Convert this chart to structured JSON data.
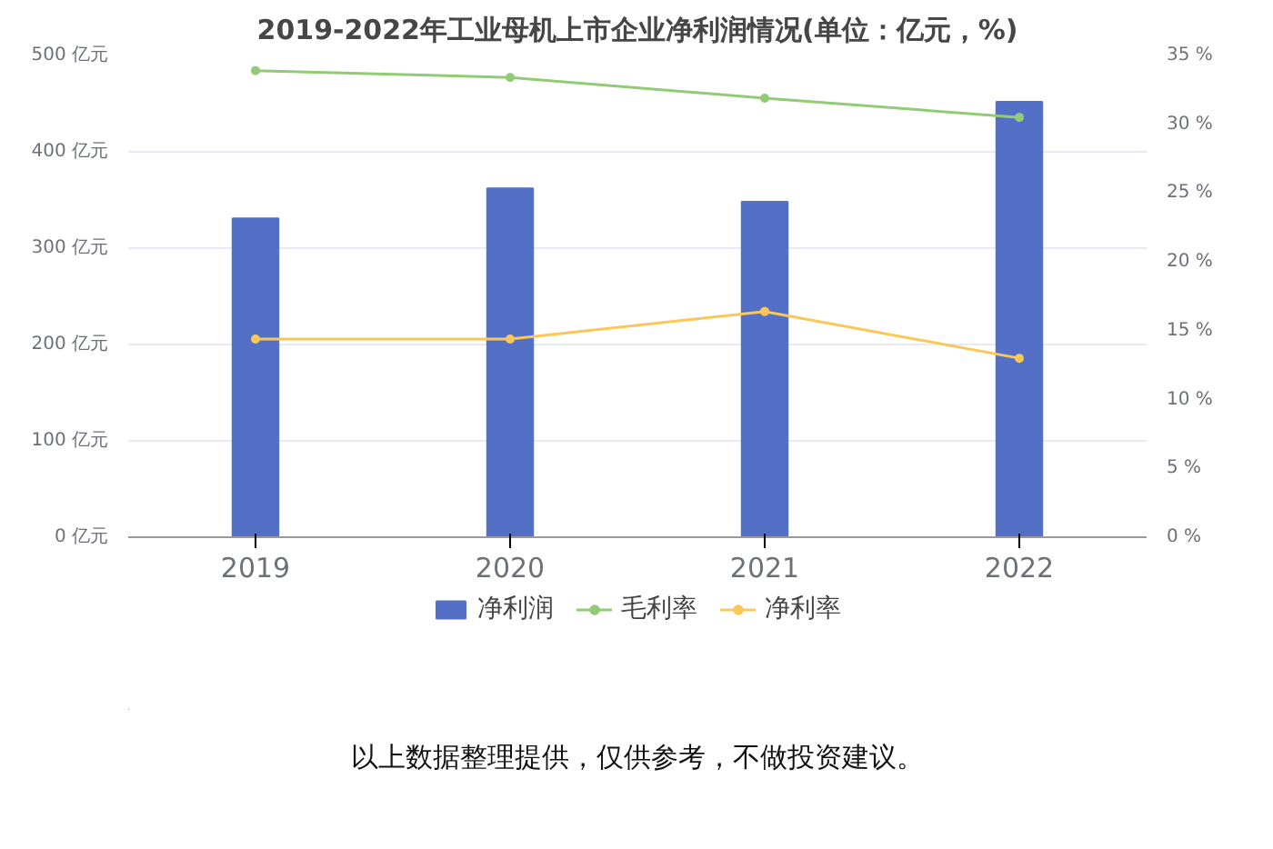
{
  "chart_data": {
    "type": "bar",
    "title": "2019-2022年工业母机上市企业净利润情况(单位：亿元，%)",
    "categories": [
      "2019",
      "2020",
      "2021",
      "2022"
    ],
    "series": [
      {
        "name": "净利润",
        "color": "#5470c6",
        "values": [
          331,
          362,
          348,
          452
        ]
      },
      {
        "name": "毛利率",
        "color": "#91cc75",
        "type": "line",
        "axis": "y2",
        "values": [
          33.9,
          33.4,
          31.9,
          30.5
        ]
      },
      {
        "name": "净利率",
        "color": "#fac858",
        "type": "line",
        "axis": "y2",
        "values": [
          14.4,
          14.4,
          16.4,
          13.0
        ]
      }
    ],
    "ylim": [
      0,
      500
    ],
    "yticks": [
      {
        "value": 0,
        "label": "0 亿元"
      },
      {
        "value": 100,
        "label": "100 亿元"
      },
      {
        "value": 200,
        "label": "200 亿元"
      },
      {
        "value": 300,
        "label": "300 亿元"
      },
      {
        "value": 400,
        "label": "400 亿元"
      },
      {
        "value": 500,
        "label": "500 亿元"
      }
    ],
    "y2lim": [
      0,
      35
    ],
    "y2ticks": [
      {
        "value": 0,
        "label": "0 %"
      },
      {
        "value": 5,
        "label": "5 %"
      },
      {
        "value": 10,
        "label": "10 %"
      },
      {
        "value": 15,
        "label": "15 %"
      },
      {
        "value": 20,
        "label": "20 %"
      },
      {
        "value": 25,
        "label": "25 %"
      },
      {
        "value": 30,
        "label": "30 %"
      },
      {
        "value": 35,
        "label": "35 %"
      }
    ],
    "grid": "y",
    "legend": "bottom",
    "marker": "circle",
    "annotations": [
      "以上数据整理提供，仅供参考，不做投资建议。"
    ]
  }
}
